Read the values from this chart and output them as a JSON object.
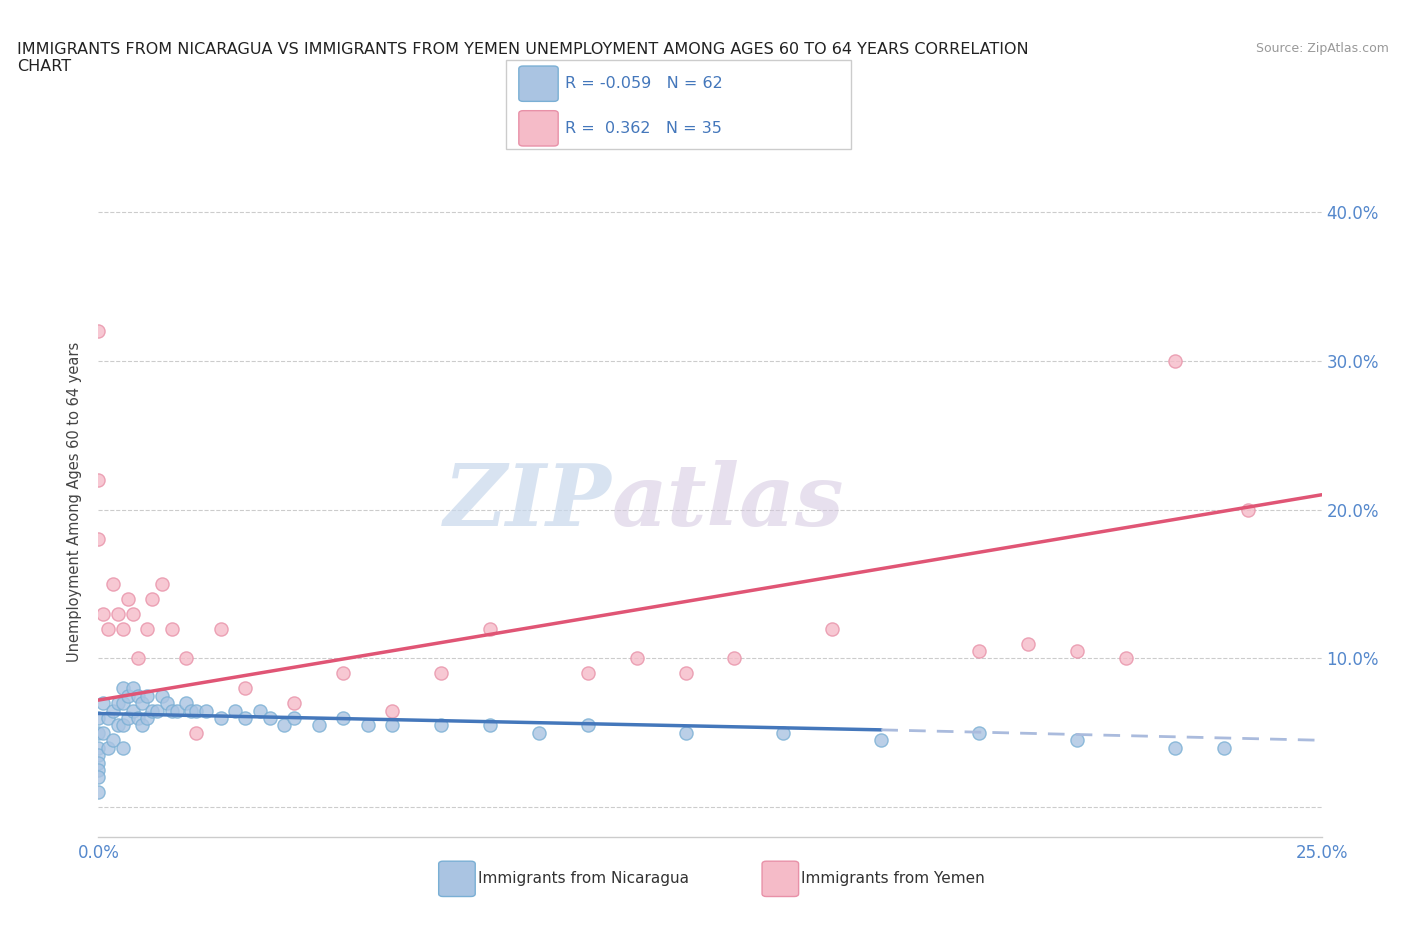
{
  "title": "IMMIGRANTS FROM NICARAGUA VS IMMIGRANTS FROM YEMEN UNEMPLOYMENT AMONG AGES 60 TO 64 YEARS CORRELATION\nCHART",
  "source": "Source: ZipAtlas.com",
  "ylabel": "Unemployment Among Ages 60 to 64 years",
  "xlim": [
    0.0,
    0.25
  ],
  "ylim": [
    -0.02,
    0.43
  ],
  "xticks": [
    0.0,
    0.05,
    0.1,
    0.15,
    0.2,
    0.25
  ],
  "xticklabels": [
    "0.0%",
    "",
    "",
    "",
    "",
    "25.0%"
  ],
  "yticks": [
    0.0,
    0.1,
    0.2,
    0.3,
    0.4
  ],
  "yticklabels": [
    "",
    "10.0%",
    "20.0%",
    "30.0%",
    "40.0%"
  ],
  "nicaragua_color": "#aac4e2",
  "nicaragua_edge": "#7aafd4",
  "yemen_color": "#f5bbc8",
  "yemen_edge": "#e891a8",
  "trend_nicaragua_color": "#4477bb",
  "trend_nicaragua_dash_color": "#aabbdd",
  "trend_yemen_color": "#e05575",
  "watermark_zip": "ZIP",
  "watermark_atlas": "atlas",
  "nicaragua_x": [
    0.0,
    0.0,
    0.0,
    0.0,
    0.0,
    0.0,
    0.0,
    0.0,
    0.001,
    0.001,
    0.002,
    0.002,
    0.003,
    0.003,
    0.004,
    0.004,
    0.005,
    0.005,
    0.005,
    0.005,
    0.006,
    0.006,
    0.007,
    0.007,
    0.008,
    0.008,
    0.009,
    0.009,
    0.01,
    0.01,
    0.011,
    0.012,
    0.013,
    0.014,
    0.015,
    0.016,
    0.018,
    0.019,
    0.02,
    0.022,
    0.025,
    0.028,
    0.03,
    0.033,
    0.035,
    0.038,
    0.04,
    0.045,
    0.05,
    0.055,
    0.06,
    0.07,
    0.08,
    0.09,
    0.1,
    0.12,
    0.14,
    0.16,
    0.18,
    0.2,
    0.22,
    0.23
  ],
  "nicaragua_y": [
    0.06,
    0.05,
    0.04,
    0.035,
    0.03,
    0.025,
    0.02,
    0.01,
    0.07,
    0.05,
    0.06,
    0.04,
    0.065,
    0.045,
    0.07,
    0.055,
    0.08,
    0.07,
    0.055,
    0.04,
    0.075,
    0.06,
    0.08,
    0.065,
    0.075,
    0.06,
    0.07,
    0.055,
    0.075,
    0.06,
    0.065,
    0.065,
    0.075,
    0.07,
    0.065,
    0.065,
    0.07,
    0.065,
    0.065,
    0.065,
    0.06,
    0.065,
    0.06,
    0.065,
    0.06,
    0.055,
    0.06,
    0.055,
    0.06,
    0.055,
    0.055,
    0.055,
    0.055,
    0.05,
    0.055,
    0.05,
    0.05,
    0.045,
    0.05,
    0.045,
    0.04,
    0.04
  ],
  "yemen_x": [
    0.0,
    0.0,
    0.0,
    0.001,
    0.002,
    0.003,
    0.004,
    0.005,
    0.006,
    0.007,
    0.008,
    0.01,
    0.011,
    0.013,
    0.015,
    0.018,
    0.02,
    0.025,
    0.03,
    0.04,
    0.05,
    0.06,
    0.07,
    0.08,
    0.1,
    0.11,
    0.12,
    0.13,
    0.15,
    0.18,
    0.19,
    0.2,
    0.21,
    0.22,
    0.235
  ],
  "yemen_y": [
    0.32,
    0.22,
    0.18,
    0.13,
    0.12,
    0.15,
    0.13,
    0.12,
    0.14,
    0.13,
    0.1,
    0.12,
    0.14,
    0.15,
    0.12,
    0.1,
    0.05,
    0.12,
    0.08,
    0.07,
    0.09,
    0.065,
    0.09,
    0.12,
    0.09,
    0.1,
    0.09,
    0.1,
    0.12,
    0.105,
    0.11,
    0.105,
    0.1,
    0.3,
    0.2
  ],
  "nic_trend_start_x": 0.0,
  "nic_trend_start_y": 0.063,
  "nic_trend_end_x": 0.16,
  "nic_trend_end_y": 0.052,
  "nic_trend_dash_start_x": 0.16,
  "nic_trend_dash_start_y": 0.052,
  "nic_trend_dash_end_x": 0.25,
  "nic_trend_dash_end_y": 0.045,
  "yem_trend_start_x": 0.0,
  "yem_trend_start_y": 0.072,
  "yem_trend_end_x": 0.25,
  "yem_trend_end_y": 0.21
}
